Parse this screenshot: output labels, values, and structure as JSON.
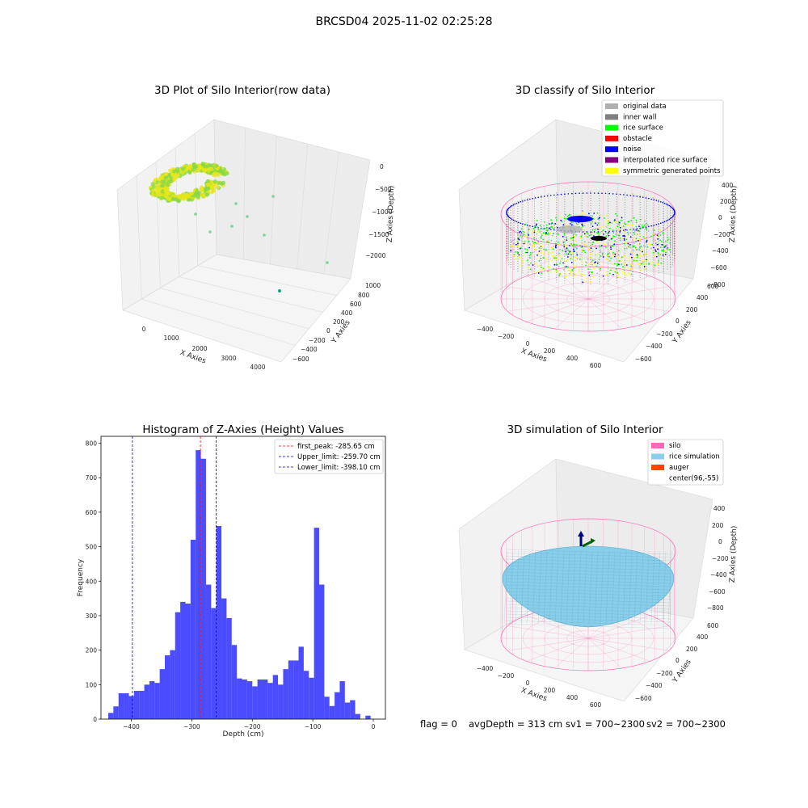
{
  "figure": {
    "title": "BRCSD04 2025-11-02 02:25:28",
    "footer": {
      "flag": "flag = 0",
      "avg_depth": "avgDepth = 313 cm",
      "sv1": "sv1 = 700~2300",
      "sv2": "sv2 = 700~2300"
    }
  },
  "panels": {
    "raw": {
      "title": "3D Plot of Silo Interior(row data)",
      "xlabel": "X Axies",
      "ylabel": "Y Axies",
      "zlabel": "Z Axies (Depth)",
      "xticks": [
        "0",
        "1000",
        "2000",
        "3000",
        "4000"
      ],
      "yticks": [
        "1000",
        "800",
        "600",
        "400",
        "200",
        "0",
        "−200",
        "−400",
        "−600"
      ],
      "zticks": [
        "0",
        "−500",
        "−1000",
        "−1500",
        "−2000"
      ],
      "colors": {
        "surface_low": "#e8e61a",
        "surface_high": "#86d84a",
        "scatter": "#5cc97a",
        "far_point": "#1f9a8a"
      }
    },
    "classify": {
      "title": "3D classify of Silo Interior",
      "xlabel": "X Axies",
      "ylabel": "Y Axies",
      "zlabel": "Z Axies (Depth)",
      "xticks": [
        "−400",
        "−200",
        "0",
        "200",
        "400",
        "600"
      ],
      "yticks": [
        "600",
        "400",
        "200",
        "0",
        "−200",
        "−400",
        "−600"
      ],
      "zticks": [
        "400",
        "200",
        "0",
        "−200",
        "−400",
        "−600",
        "−800"
      ],
      "legend": [
        {
          "label": "original data",
          "color": "#b0b0b0"
        },
        {
          "label": "inner wall",
          "color": "#808080"
        },
        {
          "label": "rice surface",
          "color": "#00ff00"
        },
        {
          "label": "obstacle",
          "color": "#ff0000"
        },
        {
          "label": "noise",
          "color": "#0000ff"
        },
        {
          "label": "interpolated rice surface",
          "color": "#800080"
        },
        {
          "label": "symmetric generated points",
          "color": "#ffff00"
        }
      ]
    },
    "histogram": {
      "title": "Histogram of Z-Axies (Height) Values",
      "legend": [
        {
          "label": "first_peak: -285.65 cm",
          "color": "#ff0000"
        },
        {
          "label": "Upper_limit: -259.70 cm",
          "color": "#0000cc"
        },
        {
          "label": "Lower_limit: -398.10 cm",
          "color": "#0000cc"
        }
      ]
    },
    "simulation": {
      "title": "3D simulation of Silo Interior",
      "xlabel": "X Axies",
      "ylabel": "Y Axies",
      "zlabel": "Z Axies (Depth)",
      "xticks": [
        "−400",
        "−200",
        "0",
        "200",
        "400",
        "600"
      ],
      "yticks": [
        "600",
        "400",
        "200",
        "0",
        "−200",
        "−400",
        "−600"
      ],
      "zticks": [
        "400",
        "200",
        "0",
        "−200",
        "−400",
        "−600",
        "−800"
      ],
      "legend": [
        {
          "label": "silo",
          "color": "#ff69b4"
        },
        {
          "label": "rice simulation",
          "color": "#87ceeb"
        },
        {
          "label": "auger",
          "color": "#ff4500"
        },
        {
          "label": "center(96,-55)",
          "color": "none"
        }
      ]
    }
  },
  "chart_data": [
    {
      "type": "bar",
      "title": "Histogram of Z-Axies (Height) Values",
      "xlabel": "Depth (cm)",
      "ylabel": "Frequency",
      "xlim": [
        -450,
        20
      ],
      "ylim": [
        0,
        820
      ],
      "xticks": [
        -400,
        -300,
        -200,
        -100,
        0
      ],
      "yticks": [
        0,
        100,
        200,
        300,
        400,
        500,
        600,
        700,
        800
      ],
      "bin_width": 8.5,
      "bins_start": [
        -438,
        -429.5,
        -421,
        -412.5,
        -404,
        -395.5,
        -387,
        -378.5,
        -370,
        -361.5,
        -353,
        -344.5,
        -336,
        -327.5,
        -319,
        -310.5,
        -302,
        -293.5,
        -285,
        -276.5,
        -268,
        -259.5,
        -251,
        -242.5,
        -234,
        -225.5,
        -217,
        -208.5,
        -200,
        -191.5,
        -183,
        -174.5,
        -166,
        -157.5,
        -149,
        -140.5,
        -132,
        -123.5,
        -115,
        -106.5,
        -98,
        -89.5,
        -81,
        -72.5,
        -64,
        -55.5,
        -47,
        -38.5,
        -30,
        -21.5,
        -13,
        -4.5
      ],
      "values": [
        18,
        37,
        75,
        75,
        67,
        82,
        82,
        100,
        110,
        105,
        145,
        185,
        200,
        310,
        340,
        335,
        520,
        780,
        755,
        390,
        322,
        560,
        350,
        293,
        215,
        118,
        115,
        110,
        95,
        115,
        115,
        105,
        128,
        100,
        145,
        170,
        170,
        210,
        140,
        120,
        555,
        390,
        65,
        38,
        78,
        110,
        48,
        55,
        15,
        0,
        10,
        0
      ],
      "color": "#0000ff",
      "lines": [
        {
          "name": "first_peak",
          "x": -285.65,
          "color": "#ff0000"
        },
        {
          "name": "Upper_limit",
          "x": -259.7,
          "color": "#0000cc"
        },
        {
          "name": "Lower_limit",
          "x": -398.1,
          "color": "#0000cc"
        }
      ],
      "legend_position": "top-right",
      "grid": false
    }
  ]
}
